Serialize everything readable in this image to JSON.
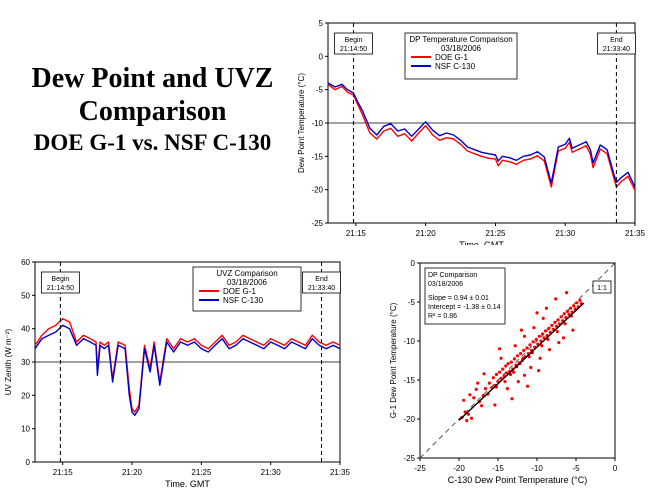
{
  "title": {
    "line1": "Dew Point and UVZ",
    "line2": "Comparison",
    "line3": "DOE G-1 vs. NSF C-130"
  },
  "colors": {
    "g1": "#ff0000",
    "c130": "#0000cc",
    "axis": "#000000"
  },
  "chart_data": [
    {
      "id": "dp",
      "type": "line",
      "title": "DP Temperature Comparison",
      "subtitle": "03/18/2006",
      "xlabel": "Time, GMT",
      "ylabel": "Dew Point Temperature (°C)",
      "xlim": [
        21.2167,
        21.5833
      ],
      "ylim": [
        -25,
        5
      ],
      "xticks": [
        21.25,
        21.3333,
        21.4167,
        21.5,
        21.5833
      ],
      "xtick_labels": [
        "21:15",
        "21:20",
        "21:25",
        "21:30",
        "21:35"
      ],
      "yticks": [
        -25,
        -20,
        -15,
        -10,
        -5,
        0,
        5
      ],
      "ytick_labels": [
        "-25",
        "-20",
        "-15",
        "-10",
        "-5",
        "0",
        "5"
      ],
      "hline": -10,
      "markers": [
        {
          "x": 21.2472,
          "label1": "Begin",
          "label2": "21:14:50"
        },
        {
          "x": 21.5611,
          "label1": "End",
          "label2": "21:33:40"
        }
      ],
      "legend": [
        "DOE G-1",
        "NSF C-130"
      ],
      "legend_position": "top-center",
      "x": [
        21.2167,
        21.225,
        21.2333,
        21.24,
        21.2472,
        21.252,
        21.258,
        21.2667,
        21.275,
        21.2833,
        21.2917,
        21.3,
        21.3083,
        21.3167,
        21.325,
        21.3333,
        21.3417,
        21.35,
        21.3583,
        21.3667,
        21.375,
        21.3833,
        21.3917,
        21.4,
        21.4083,
        21.4167,
        21.42,
        21.425,
        21.4333,
        21.4417,
        21.45,
        21.4583,
        21.4667,
        21.475,
        21.4833,
        21.4917,
        21.5,
        21.505,
        21.5083,
        21.5167,
        21.525,
        21.53,
        21.5333,
        21.5417,
        21.55,
        21.5583,
        21.5611,
        21.5667,
        21.575,
        21.5833
      ],
      "series": [
        {
          "name": "DOE G-1",
          "values": [
            -4.2,
            -5.0,
            -4.5,
            -5.4,
            -5.8,
            -7.2,
            -8.8,
            -11.5,
            -12.4,
            -11.2,
            -10.8,
            -12.0,
            -11.6,
            -12.7,
            -11.5,
            -10.4,
            -11.8,
            -12.6,
            -12.2,
            -12.4,
            -13.2,
            -14.2,
            -14.6,
            -15.0,
            -15.3,
            -15.4,
            -16.4,
            -15.6,
            -15.8,
            -16.2,
            -15.6,
            -15.4,
            -14.9,
            -15.7,
            -19.6,
            -14.2,
            -13.8,
            -12.9,
            -14.4,
            -13.9,
            -13.4,
            -14.7,
            -16.7,
            -13.9,
            -14.6,
            -18.4,
            -19.6,
            -18.8,
            -18.0,
            -20.1
          ]
        },
        {
          "name": "NSF C-130",
          "values": [
            -4.0,
            -4.6,
            -4.2,
            -5.0,
            -5.5,
            -6.8,
            -8.2,
            -10.8,
            -11.8,
            -10.5,
            -10.1,
            -11.2,
            -10.9,
            -12.0,
            -10.9,
            -9.8,
            -11.1,
            -11.9,
            -11.5,
            -11.8,
            -12.6,
            -13.6,
            -14.0,
            -14.4,
            -14.6,
            -14.8,
            -15.7,
            -15.0,
            -15.2,
            -15.6,
            -15.0,
            -14.8,
            -14.3,
            -15.1,
            -19.0,
            -13.6,
            -13.2,
            -12.3,
            -13.8,
            -13.3,
            -12.8,
            -14.0,
            -16.0,
            -13.3,
            -14.0,
            -17.8,
            -18.9,
            -18.2,
            -17.4,
            -19.6
          ]
        }
      ]
    },
    {
      "id": "uvz",
      "type": "line",
      "title": "UVZ Comparison",
      "subtitle": "03/18/2006",
      "xlabel": "Time, GMT",
      "ylabel": "UV Zenith (W m⁻²)",
      "xlim": [
        21.2167,
        21.5833
      ],
      "ylim": [
        0,
        60
      ],
      "xticks": [
        21.25,
        21.3333,
        21.4167,
        21.5,
        21.5833
      ],
      "xtick_labels": [
        "21:15",
        "21:20",
        "21:25",
        "21:30",
        "21:35"
      ],
      "yticks": [
        0,
        10,
        20,
        30,
        40,
        50,
        60
      ],
      "ytick_labels": [
        "0",
        "10",
        "20",
        "30",
        "40",
        "50",
        "60"
      ],
      "hline": 30,
      "markers": [
        {
          "x": 21.2472,
          "label1": "Begin",
          "label2": "21:14:50"
        },
        {
          "x": 21.5611,
          "label1": "End",
          "label2": "21:33:40"
        }
      ],
      "legend": [
        "DOE G-1",
        "NSF C-130"
      ],
      "legend_position": "top-center",
      "x": [
        21.2167,
        21.225,
        21.2333,
        21.2417,
        21.25,
        21.2583,
        21.2667,
        21.275,
        21.2833,
        21.29,
        21.2917,
        21.295,
        21.3,
        21.305,
        21.31,
        21.3167,
        21.325,
        21.33,
        21.3333,
        21.3367,
        21.3417,
        21.3483,
        21.355,
        21.36,
        21.3667,
        21.375,
        21.3833,
        21.3917,
        21.4,
        21.4083,
        21.4167,
        21.425,
        21.4333,
        21.4417,
        21.45,
        21.4583,
        21.4667,
        21.475,
        21.4833,
        21.4917,
        21.5,
        21.5083,
        21.5167,
        21.525,
        21.5333,
        21.5417,
        21.55,
        21.5583,
        21.5667,
        21.575,
        21.5833
      ],
      "series": [
        {
          "name": "DOE G-1",
          "values": [
            35,
            38,
            40,
            41,
            43,
            42,
            36,
            38,
            37,
            36,
            28,
            36,
            35,
            36,
            25,
            36,
            35,
            22,
            16,
            15,
            17,
            35,
            28,
            36,
            24,
            37,
            34,
            37,
            36,
            37,
            35,
            34,
            36,
            38,
            35,
            36,
            38,
            37,
            36,
            35,
            37,
            36,
            35,
            37,
            36,
            35,
            38,
            36,
            35,
            36,
            35
          ]
        },
        {
          "name": "NSF C-130",
          "values": [
            34,
            37,
            38,
            39,
            41,
            40,
            35,
            37,
            36,
            35,
            26,
            35,
            34,
            35,
            24,
            35,
            34,
            20,
            15,
            14,
            16,
            34,
            27,
            35,
            23,
            36,
            33,
            36,
            35,
            36,
            34,
            33,
            35,
            37,
            34,
            35,
            37,
            36,
            35,
            34,
            36,
            35,
            34,
            36,
            35,
            34,
            37,
            35,
            34,
            35,
            34
          ]
        }
      ]
    },
    {
      "id": "scatter",
      "type": "scatter",
      "title": "DP Comparison",
      "subtitle": "03/18/2006",
      "stats": [
        "Slope = 0.94 ± 0.01",
        "Intercept = -1.38 ± 0.14",
        "R² = 0.86"
      ],
      "xlabel": "C-130 Dew Point Temperature (°C)",
      "ylabel": "G-1 Dew Point Temperature (°C)",
      "xlim": [
        -25,
        0
      ],
      "ylim": [
        -25,
        0
      ],
      "xticks": [
        -25,
        -20,
        -15,
        -10,
        -5,
        0
      ],
      "xtick_labels": [
        "-25",
        "-20",
        "-15",
        "-10",
        "-5",
        "0"
      ],
      "yticks": [
        -25,
        -20,
        -15,
        -10,
        -5,
        0
      ],
      "ytick_labels": [
        "-25",
        "-20",
        "-15",
        "-10",
        "-5",
        "0"
      ],
      "one_to_one_label": "1:1",
      "fit": {
        "slope": 0.94,
        "intercept": -1.38,
        "x_range": [
          -20,
          -4
        ]
      },
      "points": [
        [
          -19.6,
          -19.8
        ],
        [
          -19.2,
          -19.1
        ],
        [
          -19.0,
          -20.2
        ],
        [
          -18.8,
          -19.4
        ],
        [
          -18.4,
          -19.9
        ],
        [
          -19.4,
          -17.6
        ],
        [
          -18.6,
          -16.9
        ],
        [
          -18.1,
          -17.3
        ],
        [
          -17.8,
          -16.2
        ],
        [
          -17.4,
          -17.8
        ],
        [
          -17.1,
          -18.3
        ],
        [
          -16.9,
          -17.0
        ],
        [
          -16.6,
          -16.1
        ],
        [
          -16.3,
          -16.8
        ],
        [
          -16.1,
          -15.4
        ],
        [
          -15.8,
          -16.0
        ],
        [
          -15.6,
          -14.7
        ],
        [
          -15.4,
          -15.7
        ],
        [
          -15.2,
          -14.3
        ],
        [
          -15.0,
          -15.2
        ],
        [
          -14.8,
          -14.0
        ],
        [
          -14.6,
          -14.8
        ],
        [
          -14.4,
          -13.6
        ],
        [
          -14.2,
          -14.5
        ],
        [
          -14.0,
          -13.2
        ],
        [
          -13.9,
          -14.1
        ],
        [
          -13.7,
          -12.9
        ],
        [
          -13.5,
          -13.9
        ],
        [
          -13.3,
          -12.7
        ],
        [
          -13.1,
          -13.6
        ],
        [
          -12.9,
          -12.3
        ],
        [
          -12.7,
          -13.1
        ],
        [
          -12.5,
          -11.9
        ],
        [
          -12.3,
          -12.8
        ],
        [
          -12.1,
          -11.6
        ],
        [
          -11.9,
          -12.5
        ],
        [
          -11.7,
          -11.2
        ],
        [
          -11.5,
          -12.0
        ],
        [
          -11.3,
          -10.9
        ],
        [
          -11.1,
          -11.6
        ],
        [
          -10.9,
          -10.5
        ],
        [
          -10.7,
          -11.2
        ],
        [
          -10.5,
          -10.1
        ],
        [
          -10.3,
          -10.8
        ],
        [
          -10.1,
          -9.8
        ],
        [
          -9.9,
          -10.4
        ],
        [
          -9.7,
          -9.4
        ],
        [
          -9.5,
          -10.0
        ],
        [
          -9.3,
          -9.1
        ],
        [
          -9.1,
          -9.6
        ],
        [
          -8.9,
          -8.7
        ],
        [
          -8.7,
          -9.3
        ],
        [
          -8.5,
          -8.4
        ],
        [
          -8.3,
          -8.9
        ],
        [
          -8.1,
          -8.0
        ],
        [
          -7.9,
          -8.5
        ],
        [
          -7.7,
          -7.6
        ],
        [
          -7.5,
          -8.1
        ],
        [
          -7.3,
          -7.3
        ],
        [
          -7.1,
          -7.8
        ],
        [
          -6.9,
          -6.9
        ],
        [
          -6.7,
          -7.4
        ],
        [
          -6.5,
          -6.5
        ],
        [
          -6.3,
          -7.0
        ],
        [
          -6.1,
          -6.2
        ],
        [
          -5.9,
          -6.6
        ],
        [
          -5.7,
          -5.8
        ],
        [
          -5.5,
          -6.3
        ],
        [
          -5.3,
          -5.5
        ],
        [
          -5.1,
          -5.9
        ],
        [
          -4.9,
          -5.1
        ],
        [
          -4.7,
          -5.6
        ],
        [
          -4.5,
          -4.8
        ],
        [
          -4.3,
          -5.2
        ],
        [
          -12.4,
          -15.2
        ],
        [
          -13.8,
          -16.1
        ],
        [
          -11.6,
          -14.4
        ],
        [
          -14.6,
          -12.2
        ],
        [
          -12.8,
          -10.6
        ],
        [
          -10.8,
          -13.4
        ],
        [
          -9.6,
          -12.2
        ],
        [
          -8.4,
          -11.1
        ],
        [
          -7.2,
          -10.2
        ],
        [
          -9.2,
          -7.1
        ],
        [
          -10.4,
          -8.3
        ],
        [
          -11.6,
          -9.4
        ],
        [
          -8.8,
          -5.8
        ],
        [
          -7.6,
          -4.6
        ],
        [
          -6.2,
          -3.8
        ],
        [
          -5.4,
          -8.6
        ],
        [
          -6.6,
          -9.6
        ],
        [
          -13.2,
          -17.4
        ],
        [
          -15.4,
          -18.2
        ],
        [
          -16.8,
          -14.2
        ],
        [
          -17.6,
          -15.4
        ],
        [
          -14.8,
          -11.0
        ],
        [
          -12.0,
          -8.6
        ],
        [
          -10.0,
          -6.4
        ],
        [
          -11.2,
          -15.8
        ],
        [
          -9.8,
          -13.8
        ],
        [
          -13.4,
          -14.3
        ],
        [
          -12.6,
          -13.3
        ],
        [
          -11.8,
          -12.2
        ],
        [
          -10.6,
          -11.5
        ],
        [
          -15.2,
          -15.9
        ],
        [
          -14.1,
          -15.2
        ],
        [
          -13.0,
          -14.0
        ],
        [
          -12.2,
          -12.9
        ],
        [
          -11.0,
          -12.0
        ],
        [
          -9.4,
          -10.6
        ],
        [
          -8.6,
          -9.8
        ],
        [
          -7.4,
          -8.8
        ],
        [
          -6.4,
          -7.8
        ],
        [
          -5.6,
          -6.8
        ]
      ]
    }
  ]
}
